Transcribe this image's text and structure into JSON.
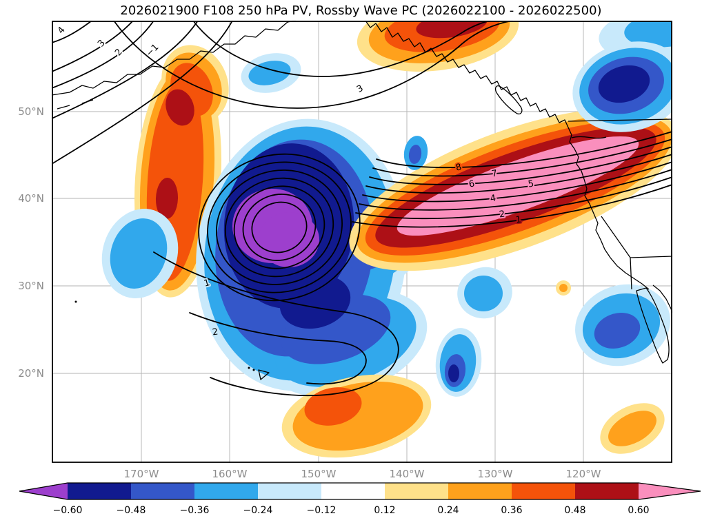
{
  "title": "2026021900 F108 250 hPa PV, Rossby Wave PC (2026022100 - 2026022500)",
  "chart_data": {
    "type": "filled-contour-map",
    "title": "2026021900 F108 250 hPa PV, Rossby Wave PC (2026022100 - 2026022500)",
    "grid": true,
    "x_tick_labels": [
      "170°W",
      "160°W",
      "150°W",
      "140°W",
      "130°W",
      "120°W"
    ],
    "y_tick_labels": [
      "50°N",
      "40°N",
      "30°N",
      "20°N"
    ],
    "axis_tick_color": "#8c8c8c",
    "contour_line_color": "#000000",
    "contour_labels_visible": [
      "−1",
      "1",
      "2",
      "3",
      "4",
      "5",
      "6",
      "7",
      "8"
    ],
    "contour_label_items": [
      {
        "text": "4"
      },
      {
        "text": "3"
      },
      {
        "text": "2"
      },
      {
        "text": "−1"
      },
      {
        "text": "3"
      },
      {
        "text": "1"
      },
      {
        "text": "2"
      },
      {
        "text": "8"
      },
      {
        "text": "7"
      },
      {
        "text": "6"
      },
      {
        "text": "5"
      },
      {
        "text": "4"
      },
      {
        "text": "2"
      },
      {
        "text": "1"
      }
    ],
    "colorbar": {
      "orientation": "horizontal",
      "extend": "both",
      "boundary_values": [
        -0.6,
        -0.48,
        -0.36,
        -0.24,
        -0.12,
        0.12,
        0.24,
        0.36,
        0.48,
        0.6
      ],
      "tick_labels": [
        "−0.60",
        "−0.48",
        "−0.36",
        "−0.24",
        "−0.12",
        "0.12",
        "0.24",
        "0.36",
        "0.48",
        "0.60"
      ],
      "segment_colors": [
        "#111a8f",
        "#3457c9",
        "#31a8ec",
        "#c8e9fb",
        "#ffffff",
        "#ffe18a",
        "#ffa11c",
        "#f4530a",
        "#ad1016"
      ],
      "under_arrow_color": "#9d3fcd",
      "over_arrow_color": "#fa8fbd"
    },
    "shading_palette": {
      "purple": "#9d3fcd",
      "navy": "#111a8f",
      "royal_blue": "#3457c9",
      "light_blue": "#31a8ec",
      "pale_blue": "#c8e9fb",
      "pale_yellow": "#ffe18a",
      "orange": "#ffa11c",
      "red_orange": "#f4530a",
      "dark_red": "#ad1016",
      "pink": "#fa8fbd"
    }
  }
}
